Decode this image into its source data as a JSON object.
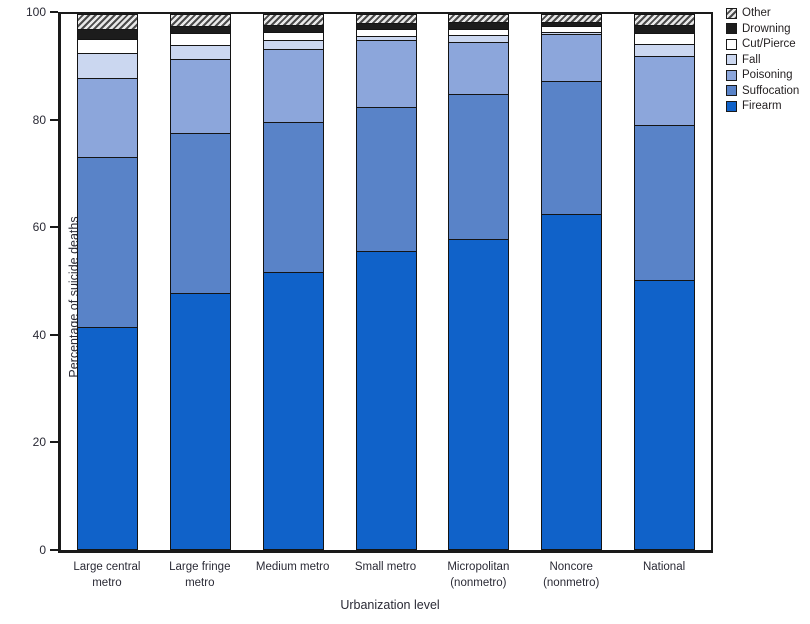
{
  "chart_data": {
    "type": "bar",
    "stacked": true,
    "xlabel": "Urbanization level",
    "ylabel": "Percentage of suicide deaths",
    "ylim": [
      0,
      100
    ],
    "yticks": [
      0,
      20,
      40,
      60,
      80,
      100
    ],
    "grid": false,
    "legend_position": "top-right-outside",
    "categories": [
      "Large central metro",
      "Large fringe metro",
      "Medium metro",
      "Small metro",
      "Micropolitan (nonmetro)",
      "Noncore (nonmetro)",
      "National"
    ],
    "category_label_lines": [
      [
        "Large central",
        "metro"
      ],
      [
        "Large fringe",
        "metro"
      ],
      [
        "Medium metro"
      ],
      [
        "Small metro"
      ],
      [
        "Micropolitan",
        "(nonmetro)"
      ],
      [
        "Noncore",
        "(nonmetro)"
      ],
      [
        "National"
      ]
    ],
    "series": [
      {
        "name": "Firearm",
        "color": "#1062C9",
        "values": [
          41.7,
          48.0,
          51.9,
          55.7,
          58.0,
          62.6,
          50.4
        ]
      },
      {
        "name": "Suffocation",
        "color": "#5983C8",
        "values": [
          31.6,
          29.8,
          27.9,
          26.9,
          27.1,
          24.9,
          28.9
        ]
      },
      {
        "name": "Poisoning",
        "color": "#8CA6DB",
        "values": [
          14.7,
          13.8,
          13.7,
          12.5,
          9.7,
          8.8,
          12.9
        ]
      },
      {
        "name": "Fall",
        "color": "#CBD7F0",
        "values": [
          4.8,
          2.6,
          1.7,
          0.8,
          1.3,
          0.4,
          2.2
        ]
      },
      {
        "name": "Cut/Pierce",
        "color": "#FFFFFF",
        "values": [
          2.6,
          2.2,
          1.4,
          1.3,
          1.2,
          1.0,
          2.0
        ]
      },
      {
        "name": "Drowning",
        "color": "#1C1C1C",
        "values": [
          1.8,
          1.4,
          1.4,
          1.1,
          1.2,
          0.9,
          1.5
        ]
      },
      {
        "name": "Other",
        "color": "hatch",
        "values": [
          2.8,
          2.2,
          2.0,
          1.7,
          1.5,
          1.4,
          2.1
        ]
      }
    ],
    "legend_order_top_to_bottom": [
      "Other",
      "Drowning",
      "Cut/Pierce",
      "Fall",
      "Poisoning",
      "Suffocation",
      "Firearm"
    ]
  },
  "colors": {
    "axis": "#1A1A1A",
    "text": "#231F20",
    "firearm": "#1062C9",
    "suffocation": "#5983C8",
    "poisoning": "#8CA6DB",
    "fall": "#CBD7F0",
    "cut_pierce": "#FFFFFF",
    "drowning": "#1C1C1C",
    "hatch_stripe": "#4A4A4A"
  }
}
